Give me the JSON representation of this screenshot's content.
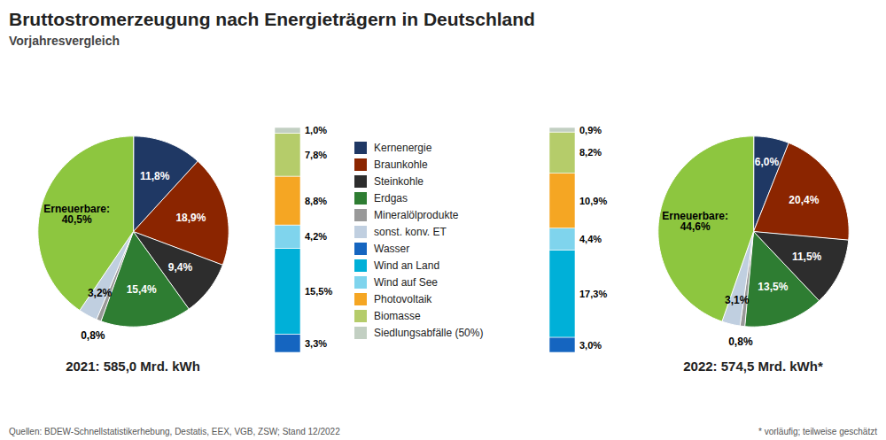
{
  "title": "Bruttostromerzeugung nach Energieträgern in Deutschland",
  "subtitle": "Vorjahresvergleich",
  "annotations": [
    "Quellen: BDEW-Schnellstatistikerhebung, Destatis, EEX, VGB, ZSW; Stand 12/2022",
    "* vorläufig; teilweise geschätzt"
  ],
  "chart_data": [
    {
      "type": "pie",
      "title": "2021: 585,0 Mrd. kWh",
      "categories": [
        "Kernenergie",
        "Braunkohle",
        "Steinkohle",
        "Erdgas",
        "Mineralölprodukte",
        "sonst. konv. ET",
        null
      ],
      "values": [
        11.8,
        18.9,
        9.4,
        15.4,
        0.8,
        3.2,
        40.5
      ],
      "value_labels": [
        "11,8%",
        "18,9%",
        "9,4%",
        "15,4%",
        "0,8%",
        "3,2%",
        "Erneuerbare:\n40,5%"
      ],
      "colors": [
        "#1f3864",
        "#8b2500",
        "#2d2d2d",
        "#2e7d32",
        "#999999",
        "#c0cfe0",
        "#8dc63f"
      ],
      "data_labels": true,
      "legend": "center"
    },
    {
      "type": "bar",
      "stacked": true,
      "categories": [
        null
      ],
      "series": [
        {
          "name": "Wasser",
          "color": "#1565c0",
          "values": [
            3.3
          ],
          "value_labels": [
            "3,3%"
          ]
        },
        {
          "name": "Wind an Land",
          "color": "#00b0d8",
          "values": [
            15.5
          ],
          "value_labels": [
            "15,5%"
          ]
        },
        {
          "name": "Wind auf See",
          "color": "#7fd4ed",
          "values": [
            4.2
          ],
          "value_labels": [
            "4,2%"
          ]
        },
        {
          "name": "Photovoltaik",
          "color": "#f5a623",
          "values": [
            8.8
          ],
          "value_labels": [
            "8,8%"
          ]
        },
        {
          "name": "Biomasse",
          "color": "#b5cc6a",
          "values": [
            7.8
          ],
          "value_labels": [
            "7,8%"
          ]
        },
        {
          "name": "Siedlungsabfälle (50%)",
          "color": "#c2cfc2",
          "values": [
            1.0
          ],
          "value_labels": [
            "1,0%"
          ]
        }
      ],
      "data_labels": true,
      "tick_labels": false,
      "legend": "center"
    },
    {
      "type": "bar",
      "stacked": true,
      "categories": [
        null
      ],
      "series": [
        {
          "name": "Wasser",
          "color": "#1565c0",
          "values": [
            3.0
          ],
          "value_labels": [
            "3,0%"
          ]
        },
        {
          "name": "Wind an Land",
          "color": "#00b0d8",
          "values": [
            17.3
          ],
          "value_labels": [
            "17,3%"
          ]
        },
        {
          "name": "Wind auf See",
          "color": "#7fd4ed",
          "values": [
            4.4
          ],
          "value_labels": [
            "4,4%"
          ]
        },
        {
          "name": "Photovoltaik",
          "color": "#f5a623",
          "values": [
            10.9
          ],
          "value_labels": [
            "10,9%"
          ]
        },
        {
          "name": "Biomasse",
          "color": "#b5cc6a",
          "values": [
            8.2
          ],
          "value_labels": [
            "8,2%"
          ]
        },
        {
          "name": "Siedlungsabfälle (50%)",
          "color": "#c2cfc2",
          "values": [
            0.9
          ],
          "value_labels": [
            "0,9%"
          ]
        }
      ],
      "data_labels": true,
      "tick_labels": false
    },
    {
      "type": "pie",
      "title": "2022: 574,5 Mrd. kWh*",
      "categories": [
        "Kernenergie",
        "Braunkohle",
        "Steinkohle",
        "Erdgas",
        "Mineralölprodukte",
        "sonst. konv. ET",
        null
      ],
      "values": [
        6.0,
        20.4,
        11.5,
        13.5,
        0.8,
        3.1,
        44.6
      ],
      "value_labels": [
        "6,0%",
        "20,4%",
        "11,5%",
        "13,5%",
        "0,8%",
        "3,1%",
        "Erneuerbare:\n44,6%"
      ],
      "colors": [
        "#1f3864",
        "#8b2500",
        "#2d2d2d",
        "#2e7d32",
        "#999999",
        "#c0cfe0",
        "#8dc63f"
      ],
      "data_labels": true
    }
  ]
}
